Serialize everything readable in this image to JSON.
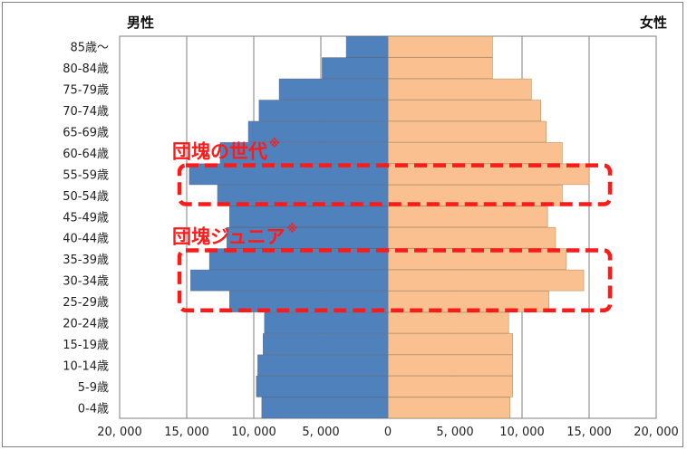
{
  "chart_data": {
    "type": "bar",
    "orientation": "horizontal-pyramid",
    "categories": [
      "85歳〜",
      "80-84歳",
      "75-79歳",
      "70-74歳",
      "65-69歳",
      "60-64歳",
      "55-59歳",
      "50-54歳",
      "45-49歳",
      "40-44歳",
      "35-39歳",
      "30-34歳",
      "25-29歳",
      "20-24歳",
      "15-19歳",
      "10-14歳",
      "5-9歳",
      "0-4歳"
    ],
    "series": [
      {
        "name": "男性",
        "color": "#4f81bd",
        "values": [
          3100,
          4900,
          8100,
          9600,
          10400,
          12500,
          14800,
          12700,
          11800,
          12000,
          13300,
          14700,
          11800,
          9200,
          9300,
          9700,
          9800,
          9400
        ]
      },
      {
        "name": "女性",
        "color": "#fac090",
        "values": [
          7800,
          7800,
          10700,
          11400,
          11800,
          13000,
          15000,
          13000,
          11900,
          12500,
          13300,
          14600,
          12000,
          9000,
          9300,
          9300,
          9300,
          9100
        ]
      }
    ],
    "xlim": [
      -20000,
      20000
    ],
    "x_ticks": [
      -20000,
      -15000,
      -10000,
      -5000,
      0,
      5000,
      10000,
      15000,
      20000
    ],
    "x_tick_labels": [
      "20, 000",
      "15, 000",
      "10, 000",
      "5, 000",
      "0",
      "5, 000",
      "10, 000",
      "15, 000",
      "20, 000"
    ],
    "grid": true,
    "labels": {
      "male": "男性",
      "female": "女性"
    },
    "annotations": [
      {
        "text": "団塊の世代",
        "mark": "※",
        "rows": [
          "55-59歳",
          "50-54歳"
        ],
        "color": "#ff1a1a"
      },
      {
        "text": "団塊ジュニア",
        "mark": "※",
        "rows": [
          "35-39歳",
          "30-34歳",
          "25-29歳"
        ],
        "color": "#ff1a1a"
      }
    ]
  }
}
